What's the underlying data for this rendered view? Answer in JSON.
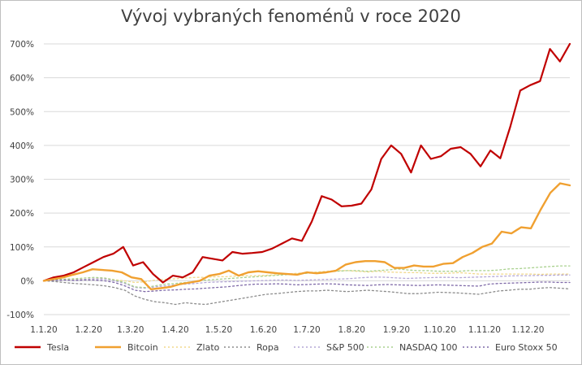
{
  "chart_data": {
    "type": "line",
    "title": "Vývoj vybraných fenoménů v roce 2020",
    "xlabel": "",
    "ylabel": "",
    "y_ticks": [
      "700%",
      "600%",
      "500%",
      "400%",
      "300%",
      "200%",
      "100%",
      "0%",
      "-100%"
    ],
    "ylim": [
      -100,
      700
    ],
    "x_ticks": [
      "1.1.20",
      "1.2.20",
      "1.3.20",
      "1.4.20",
      "1.5.20",
      "1.6.20",
      "1.7.20",
      "1.8.20",
      "1.9.20",
      "1.10.20",
      "1.11.20",
      "1.12.20"
    ],
    "x_range_weeks": [
      0,
      52
    ],
    "grid": "horizontal",
    "legend_position": "bottom",
    "series": [
      {
        "name": "Tesla",
        "color": "#c00000",
        "style": "solid",
        "width": 2.2,
        "values": [
          0,
          10,
          15,
          25,
          40,
          55,
          70,
          80,
          100,
          45,
          55,
          20,
          -5,
          15,
          10,
          25,
          70,
          65,
          60,
          85,
          80,
          82,
          85,
          95,
          110,
          125,
          118,
          175,
          250,
          240,
          220,
          222,
          228,
          270,
          360,
          400,
          375,
          320,
          400,
          360,
          368,
          390,
          395,
          375,
          338,
          385,
          362,
          455,
          562,
          578,
          590,
          685,
          648,
          700
        ]
      },
      {
        "name": "Bitcoin",
        "color": "#f0a030",
        "style": "solid",
        "width": 2.4,
        "values": [
          0,
          5,
          10,
          18,
          25,
          34,
          32,
          30,
          25,
          10,
          5,
          -25,
          -22,
          -18,
          -10,
          -5,
          0,
          15,
          20,
          30,
          15,
          25,
          28,
          25,
          22,
          20,
          18,
          25,
          22,
          25,
          30,
          48,
          55,
          58,
          58,
          55,
          38,
          38,
          45,
          42,
          42,
          50,
          52,
          70,
          82,
          100,
          110,
          145,
          140,
          158,
          155,
          210,
          260,
          288,
          282
        ]
      },
      {
        "name": "Zlato",
        "color": "#f2d98c",
        "style": "dashed",
        "width": 1.3,
        "values": [
          0,
          2,
          3,
          4,
          4,
          6,
          8,
          3,
          0,
          -5,
          -3,
          2,
          4,
          6,
          8,
          10,
          10,
          12,
          12,
          14,
          15,
          15,
          16,
          18,
          20,
          22,
          24,
          26,
          28,
          30,
          30,
          28,
          26,
          28,
          26,
          25,
          24,
          24,
          22,
          22,
          22,
          24,
          22,
          20,
          20,
          20,
          20,
          20,
          20,
          19,
          20,
          20,
          20
        ]
      },
      {
        "name": "Ropa",
        "color": "#8c8c8c",
        "style": "dashed",
        "width": 1.3,
        "values": [
          0,
          -2,
          -5,
          -8,
          -10,
          -12,
          -15,
          -20,
          -28,
          -45,
          -55,
          -62,
          -65,
          -70,
          -65,
          -68,
          -70,
          -65,
          -60,
          -55,
          -50,
          -45,
          -40,
          -38,
          -35,
          -32,
          -30,
          -30,
          -28,
          -30,
          -32,
          -30,
          -28,
          -30,
          -32,
          -35,
          -38,
          -38,
          -36,
          -34,
          -35,
          -36,
          -38,
          -40,
          -35,
          -30,
          -28,
          -25,
          -25,
          -22,
          -20,
          -22,
          -24
        ]
      },
      {
        "name": "S&P 500",
        "color": "#b4a7d6",
        "style": "dashed",
        "width": 1.3,
        "values": [
          0,
          2,
          3,
          2,
          4,
          6,
          5,
          0,
          -8,
          -20,
          -22,
          -18,
          -15,
          -12,
          -10,
          -8,
          -5,
          -4,
          -3,
          -2,
          -1,
          0,
          1,
          2,
          2,
          1,
          2,
          3,
          4,
          5,
          6,
          8,
          10,
          11,
          10,
          8,
          7,
          8,
          9,
          10,
          10,
          9,
          10,
          11,
          12,
          13,
          14,
          15,
          15,
          16,
          16,
          17,
          17
        ]
      },
      {
        "name": "NASDAQ 100",
        "color": "#a9d18e",
        "style": "dashed",
        "width": 1.3,
        "values": [
          0,
          3,
          5,
          6,
          8,
          10,
          8,
          2,
          -5,
          -18,
          -20,
          -15,
          -10,
          -8,
          -5,
          -2,
          2,
          4,
          6,
          8,
          10,
          12,
          14,
          16,
          18,
          20,
          22,
          24,
          26,
          28,
          30,
          30,
          28,
          30,
          32,
          35,
          32,
          30,
          30,
          28,
          28,
          28,
          30,
          30,
          30,
          32,
          35,
          36,
          38,
          40,
          42,
          44,
          44
        ]
      },
      {
        "name": "Euro Stoxx 50",
        "color": "#7f6aa8",
        "style": "dashed",
        "width": 1.3,
        "values": [
          0,
          1,
          2,
          1,
          2,
          2,
          0,
          -5,
          -15,
          -28,
          -32,
          -30,
          -28,
          -27,
          -25,
          -24,
          -22,
          -20,
          -18,
          -15,
          -12,
          -10,
          -10,
          -9,
          -10,
          -12,
          -11,
          -10,
          -9,
          -10,
          -12,
          -13,
          -14,
          -12,
          -11,
          -12,
          -13,
          -14,
          -13,
          -12,
          -13,
          -14,
          -15,
          -16,
          -10,
          -8,
          -7,
          -6,
          -5,
          -4,
          -4,
          -5,
          -5
        ]
      }
    ]
  }
}
